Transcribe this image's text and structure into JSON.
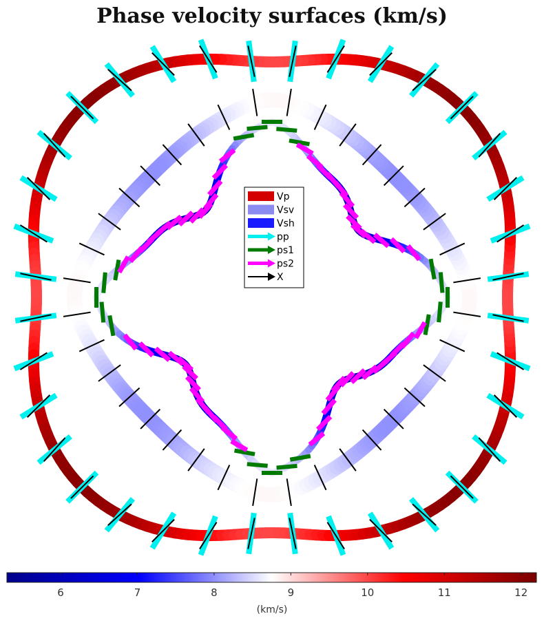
{
  "title": "Phase velocity surfaces (km/s)",
  "colors": {
    "Vp": "#d40000",
    "Vsv": "#8a8af0",
    "Vsh": "#1a1aff",
    "pp": "#00f0f0",
    "ps1": "#007a00",
    "ps2": "#ff00ff",
    "X": "#000000"
  },
  "chart_data": {
    "type": "polar-surface",
    "title": "Phase velocity surfaces (km/s)",
    "legend": {
      "placement": "center",
      "entries": [
        "Vp",
        "Vsv",
        "Vsh",
        "pp",
        "ps1",
        "ps2",
        "X"
      ]
    },
    "colorbar": {
      "label": "(km/s)",
      "range": [
        5.3,
        12.2
      ],
      "ticks": [
        6,
        7,
        8,
        9,
        10,
        11,
        12
      ],
      "colormap": [
        "#00008a",
        "#0000ff",
        "#ffffff",
        "#ff0000",
        "#7a0000"
      ]
    },
    "series": [
      {
        "name": "Vp",
        "velocity_range": [
          10.0,
          12.0
        ],
        "azimuthal_pattern": "max near 45 deg, min near 0 and 90 deg"
      },
      {
        "name": "Vsv",
        "velocity_range": [
          8.0,
          8.8
        ],
        "azimuthal_pattern": "max near 0 and 90 deg, min near 45 deg"
      },
      {
        "name": "Vsh",
        "velocity_range": [
          5.8,
          8.6
        ],
        "azimuthal_pattern": "min near 45 deg"
      }
    ],
    "markers": [
      "pp",
      "ps1",
      "ps2",
      "X"
    ]
  }
}
